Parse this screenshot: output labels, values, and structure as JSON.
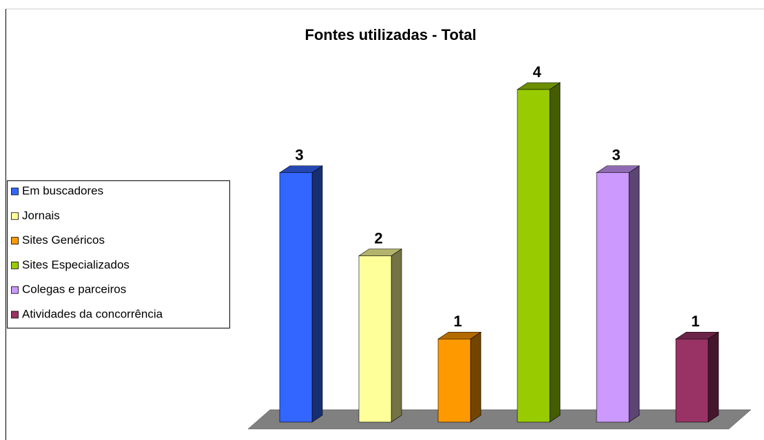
{
  "chart_data": {
    "type": "bar3d",
    "title": "Fontes utilizadas - Total",
    "categories": [
      "Em buscadores",
      "Jornais",
      "Sites Genéricos",
      "Sites Especializados",
      "Colegas e parceiros",
      "Atividades da concorrência"
    ],
    "values": [
      3,
      2,
      1,
      4,
      3,
      1
    ],
    "colors": [
      "#3366ff",
      "#ffff99",
      "#ff9900",
      "#99cc00",
      "#cc99ff",
      "#993366"
    ],
    "ylim": [
      0,
      4
    ],
    "legend": "left"
  }
}
